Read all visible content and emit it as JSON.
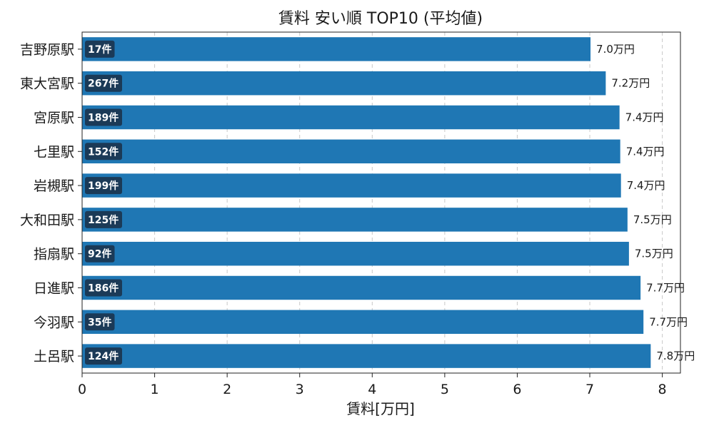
{
  "chart_data": {
    "type": "bar",
    "orientation": "horizontal",
    "title": "賃料 安い順 TOP10 (平均値)",
    "xlabel": "賃料[万円]",
    "ylabel": "",
    "xlim": [
      0,
      8.25
    ],
    "xticks": [
      0,
      1,
      2,
      3,
      4,
      5,
      6,
      7,
      8
    ],
    "grid": "x-dashed",
    "bar_color": "#1f77b4",
    "count_badge_color": "#1b3a57",
    "value_suffix": "万円",
    "count_suffix": "件",
    "categories": [
      "吉野原駅",
      "東大宮駅",
      "宮原駅",
      "七里駅",
      "岩槻駅",
      "大和田駅",
      "指扇駅",
      "日進駅",
      "今羽駅",
      "土呂駅"
    ],
    "values": [
      7.01,
      7.22,
      7.41,
      7.42,
      7.43,
      7.52,
      7.54,
      7.7,
      7.74,
      7.84
    ],
    "value_labels": [
      "7.0万円",
      "7.2万円",
      "7.4万円",
      "7.4万円",
      "7.4万円",
      "7.5万円",
      "7.5万円",
      "7.7万円",
      "7.7万円",
      "7.8万円"
    ],
    "counts": [
      17,
      267,
      189,
      152,
      199,
      125,
      92,
      186,
      35,
      124
    ],
    "count_labels": [
      "17件",
      "267件",
      "189件",
      "152件",
      "199件",
      "125件",
      "92件",
      "186件",
      "35件",
      "124件"
    ]
  }
}
